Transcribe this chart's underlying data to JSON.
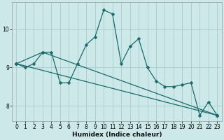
{
  "xlabel": "Humidex (Indice chaleur)",
  "bg_color": "#cce8e8",
  "grid_color": "#aacccc",
  "line_color": "#1a6b6b",
  "xlim": [
    -0.5,
    23.5
  ],
  "ylim": [
    7.6,
    10.7
  ],
  "yticks": [
    8,
    9,
    10
  ],
  "xticks": [
    0,
    1,
    2,
    3,
    4,
    5,
    6,
    7,
    8,
    9,
    10,
    11,
    12,
    13,
    14,
    15,
    16,
    17,
    18,
    19,
    20,
    21,
    22,
    23
  ],
  "series1_x": [
    0,
    1,
    2,
    3,
    4,
    5,
    6,
    7,
    8,
    9,
    10,
    11,
    12,
    13,
    14,
    15,
    16,
    17,
    18,
    19,
    20,
    21,
    22,
    23
  ],
  "series1_y": [
    9.1,
    9.0,
    9.1,
    9.4,
    9.4,
    8.6,
    8.6,
    9.1,
    9.6,
    9.8,
    10.5,
    10.4,
    9.1,
    9.55,
    9.75,
    9.0,
    8.65,
    8.5,
    8.5,
    8.55,
    8.6,
    7.75,
    8.1,
    7.75
  ],
  "series2_x": [
    0,
    23
  ],
  "series2_y": [
    9.1,
    7.75
  ],
  "series3_x": [
    0,
    3,
    23
  ],
  "series3_y": [
    9.1,
    9.4,
    7.75
  ],
  "marker_size": 2.5,
  "linewidth": 0.9,
  "tick_fontsize": 5.5,
  "xlabel_fontsize": 6.5
}
